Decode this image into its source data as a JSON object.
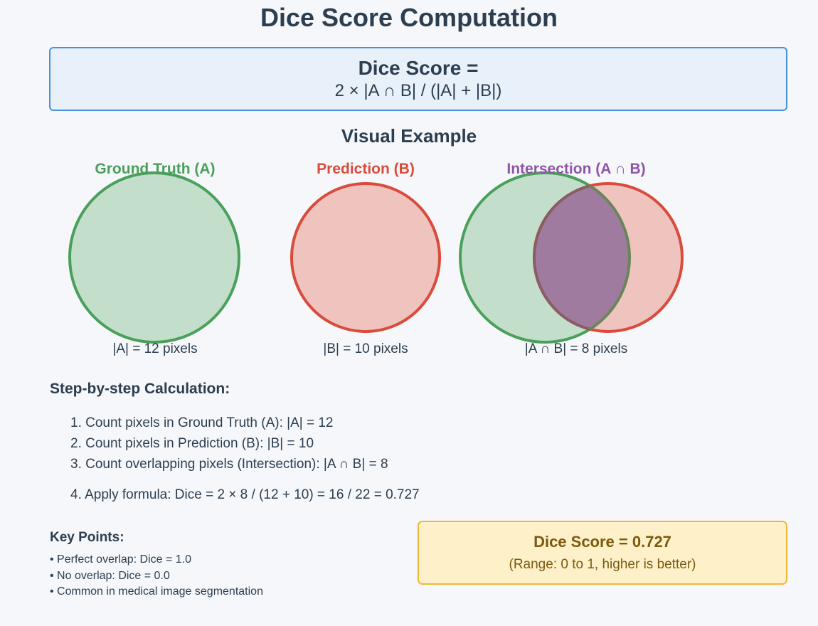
{
  "title": "Dice Score Computation",
  "formula": {
    "title": "Dice Score =",
    "expression": "2 × |A ∩ B| / (|A| + |B|)"
  },
  "visual": {
    "title": "Visual Example",
    "ground_truth": {
      "label": "Ground Truth (A)",
      "caption": "|A| = 12 pixels"
    },
    "prediction": {
      "label": "Prediction (B)",
      "caption": "|B| = 10 pixels"
    },
    "intersection": {
      "label": "Intersection (A ∩ B)",
      "caption": "|A ∩ B| = 8 pixels"
    }
  },
  "colors": {
    "ground_truth": "#4aa05a",
    "prediction": "#d94c3d",
    "intersection": "#8e55a8",
    "formula_border": "#4a90d9",
    "result_border": "#f0b73a"
  },
  "steps": {
    "title": "Step-by-step Calculation:",
    "items": [
      "1. Count pixels in Ground Truth (A): |A| = 12",
      "2. Count pixels in Prediction (B): |B| = 10",
      "3. Count overlapping pixels (Intersection): |A ∩ B| = 8",
      "4. Apply formula: Dice = 2 × 8 / (12 + 10) = 16 / 22 = 0.727"
    ]
  },
  "key_points": {
    "title": "Key Points:",
    "items": [
      "• Perfect overlap: Dice = 1.0",
      "• No overlap: Dice = 0.0",
      "• Common in medical image segmentation"
    ]
  },
  "result": {
    "main": "Dice Score = 0.727",
    "sub": "(Range: 0 to 1, higher is better)"
  }
}
